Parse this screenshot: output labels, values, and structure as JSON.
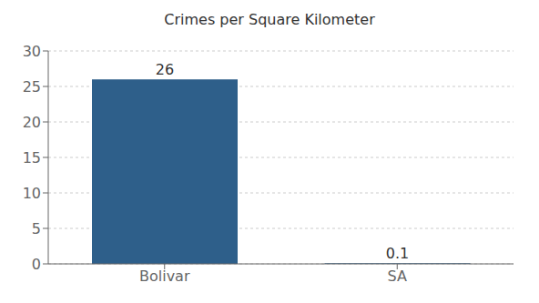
{
  "chart_data": {
    "type": "bar",
    "title": "Crimes per Square Kilometer",
    "categories": [
      "Bolivar",
      "SA"
    ],
    "values": [
      26,
      0.1
    ],
    "color": "#2e5f8a",
    "ylim": [
      0,
      30
    ],
    "yticks": [
      0,
      5,
      10,
      15,
      20,
      25,
      30
    ],
    "grid": true,
    "data_labels": true
  }
}
